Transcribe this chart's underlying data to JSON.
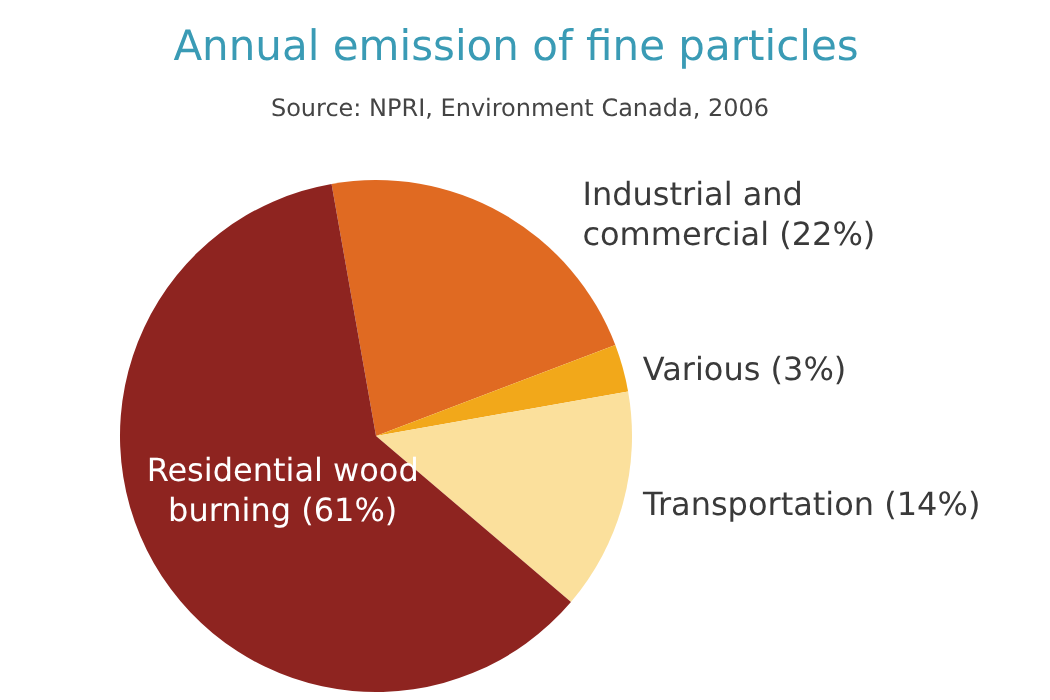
{
  "chart_data": {
    "type": "pie",
    "title": "Annual emission of fine particles",
    "subtitle": "Source: NPRI, Environment Canada, 2006",
    "categories": [
      "Industrial and commercial",
      "Various",
      "Transportation",
      "Residential wood burning"
    ],
    "values": [
      22,
      3,
      14,
      61
    ],
    "value_labels": [
      "(22%)",
      "(3%)",
      "(14%)",
      "(61%)"
    ],
    "colors": [
      "#e06a22",
      "#f2a81a",
      "#fbe09c",
      "#8e2420"
    ]
  }
}
